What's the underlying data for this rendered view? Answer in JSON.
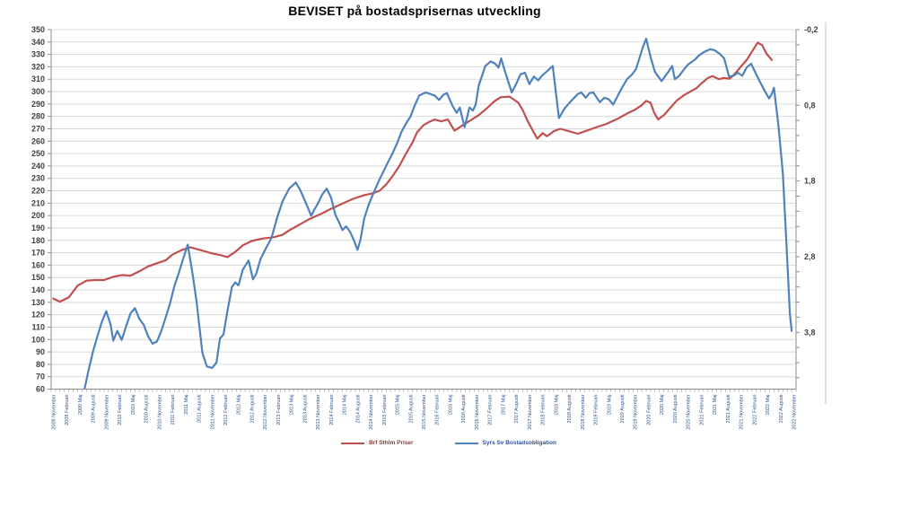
{
  "chart_data": {
    "type": "line",
    "title": "BEVISET på bostadsprisernas utveckling",
    "grid": true,
    "legend_position": "bottom",
    "left_axis": {
      "min": 60,
      "max": 350,
      "tick_step": 10
    },
    "right_axis": {
      "min": -0.2,
      "max": 4.55,
      "direction": "increases-downward",
      "minor_tick_step": 0.2,
      "ticks": [
        {
          "label": "-0,2",
          "value": -0.2
        },
        {
          "label": "0,8",
          "value": 0.8
        },
        {
          "label": "1,8",
          "value": 1.8
        },
        {
          "label": "2,8",
          "value": 2.8
        },
        {
          "label": "3,8",
          "value": 3.8
        }
      ]
    },
    "x_axis": {
      "months_total": 169,
      "label_every_months": 3,
      "labels": [
        "2008 November",
        "2009 Februari",
        "2009 Maj",
        "2009 Augusti",
        "2009 November",
        "2010 Februari",
        "2010 Maj",
        "2010 Augusti",
        "2010 November",
        "2011 Februari",
        "2011 Maj",
        "2011 Augusti",
        "2011 November",
        "2012 Februari",
        "2012 Maj",
        "2012 Augusti",
        "2012 November",
        "2013 Februari",
        "2013 Maj",
        "2013 Augusti",
        "2013 November",
        "2014 Februari",
        "2014 Maj",
        "2014 Augusti",
        "2014 November",
        "2015 Februari",
        "2015 Maj",
        "2015 Augusti",
        "2015 November",
        "2016 Februari",
        "2016 Maj",
        "2016 Augusti",
        "2016 November",
        "2017 Februari",
        "2017 Maj",
        "2017 Augusti",
        "2017 November",
        "2018 Februari",
        "2018 Maj",
        "2018 Augusti",
        "2018 November",
        "2019 Februari",
        "2019 Maj",
        "2019 Augusti",
        "2019 November",
        "2020 Februari",
        "2020 Maj",
        "2020 Augusti",
        "2020 November",
        "2021 Februari",
        "2021 Maj",
        "2021 Augusti",
        "2021 November",
        "2022 Februari",
        "2022 Maj",
        "2022 Augusti",
        "2022 November"
      ]
    },
    "series": [
      {
        "name": "Brf Sthlm Priser",
        "axis": "left",
        "color": "#C0504D",
        "points": [
          [
            0,
            133
          ],
          [
            1.5,
            130.5
          ],
          [
            3.5,
            134
          ],
          [
            5.5,
            143.5
          ],
          [
            7.5,
            147.5
          ],
          [
            9.5,
            148
          ],
          [
            11.5,
            148
          ],
          [
            13.5,
            150.5
          ],
          [
            15.5,
            152
          ],
          [
            17.5,
            151.5
          ],
          [
            19.5,
            155
          ],
          [
            21.5,
            159
          ],
          [
            23.5,
            161.5
          ],
          [
            25.5,
            164
          ],
          [
            27,
            168.5
          ],
          [
            29,
            172
          ],
          [
            31,
            174.5
          ],
          [
            32.5,
            173
          ],
          [
            34,
            171.5
          ],
          [
            36,
            169.5
          ],
          [
            38,
            168
          ],
          [
            39.5,
            166.5
          ],
          [
            41,
            170
          ],
          [
            43,
            176
          ],
          [
            45,
            179.5
          ],
          [
            47.5,
            181.5
          ],
          [
            50,
            182.5
          ],
          [
            52,
            184.5
          ],
          [
            53.5,
            188
          ],
          [
            55.5,
            192
          ],
          [
            58,
            197
          ],
          [
            60.5,
            201
          ],
          [
            63,
            205.5
          ],
          [
            65.5,
            209.5
          ],
          [
            68,
            213.5
          ],
          [
            70.5,
            216.5
          ],
          [
            72.5,
            218
          ],
          [
            74,
            220
          ],
          [
            75.5,
            225
          ],
          [
            77,
            232
          ],
          [
            78.5,
            240
          ],
          [
            80,
            250
          ],
          [
            81.5,
            259
          ],
          [
            82.5,
            267
          ],
          [
            84,
            273
          ],
          [
            85.5,
            276
          ],
          [
            86.5,
            277.5
          ],
          [
            88,
            276
          ],
          [
            89.5,
            277.5
          ],
          [
            91,
            268.5
          ],
          [
            92.5,
            272
          ],
          [
            94.5,
            276.5
          ],
          [
            96.5,
            281
          ],
          [
            98.5,
            287
          ],
          [
            100,
            292
          ],
          [
            101.5,
            295.5
          ],
          [
            103.5,
            296
          ],
          [
            105.5,
            291
          ],
          [
            106.5,
            285
          ],
          [
            107.5,
            277
          ],
          [
            109,
            267
          ],
          [
            109.8,
            262
          ],
          [
            111,
            266.5
          ],
          [
            112,
            264
          ],
          [
            113.5,
            268
          ],
          [
            115,
            270
          ],
          [
            117,
            268
          ],
          [
            119,
            266
          ],
          [
            121,
            268.5
          ],
          [
            123,
            271
          ],
          [
            125.5,
            274
          ],
          [
            128,
            278
          ],
          [
            130,
            282
          ],
          [
            132,
            285.5
          ],
          [
            133.5,
            289
          ],
          [
            134.5,
            292.5
          ],
          [
            135.5,
            291
          ],
          [
            136.3,
            283
          ],
          [
            137.2,
            277.5
          ],
          [
            138.5,
            281
          ],
          [
            140,
            287
          ],
          [
            141.5,
            293
          ],
          [
            143,
            297
          ],
          [
            144.5,
            300
          ],
          [
            146,
            303
          ],
          [
            147,
            306.5
          ],
          [
            148.5,
            311
          ],
          [
            149.5,
            312.5
          ],
          [
            151,
            310
          ],
          [
            152,
            311
          ],
          [
            153.5,
            310.5
          ],
          [
            155,
            316
          ],
          [
            156.2,
            321
          ],
          [
            157.4,
            326
          ],
          [
            158.8,
            334
          ],
          [
            159.8,
            339.5
          ],
          [
            160.8,
            337.5
          ],
          [
            161.8,
            330.5
          ],
          [
            163,
            325.5
          ]
        ]
      },
      {
        "name": "Syrs Sv Bostadsobligation",
        "axis": "right",
        "color": "#4F81BD",
        "points": [
          [
            7,
            4.57
          ],
          [
            8,
            4.3
          ],
          [
            9,
            4.05
          ],
          [
            10,
            3.85
          ],
          [
            11,
            3.66
          ],
          [
            12,
            3.52
          ],
          [
            13,
            3.7
          ],
          [
            13.6,
            3.91
          ],
          [
            14.5,
            3.78
          ],
          [
            15.5,
            3.9
          ],
          [
            16.5,
            3.72
          ],
          [
            17.5,
            3.55
          ],
          [
            18.5,
            3.48
          ],
          [
            19.5,
            3.62
          ],
          [
            20.5,
            3.7
          ],
          [
            21.5,
            3.85
          ],
          [
            22.5,
            3.95
          ],
          [
            23.5,
            3.92
          ],
          [
            24.5,
            3.78
          ],
          [
            25.5,
            3.6
          ],
          [
            26.5,
            3.41
          ],
          [
            27.5,
            3.18
          ],
          [
            28.5,
            3.01
          ],
          [
            29.5,
            2.82
          ],
          [
            30.5,
            2.64
          ],
          [
            31.5,
            3.0
          ],
          [
            32.5,
            3.4
          ],
          [
            33.8,
            4.07
          ],
          [
            34.8,
            4.25
          ],
          [
            36,
            4.27
          ],
          [
            37,
            4.2
          ],
          [
            37.8,
            3.88
          ],
          [
            38.6,
            3.83
          ],
          [
            39.5,
            3.52
          ],
          [
            40.5,
            3.2
          ],
          [
            41.3,
            3.14
          ],
          [
            42,
            3.18
          ],
          [
            43,
            2.97
          ],
          [
            44.3,
            2.85
          ],
          [
            45.3,
            3.1
          ],
          [
            46,
            3.03
          ],
          [
            47,
            2.83
          ],
          [
            48.4,
            2.67
          ],
          [
            49.5,
            2.55
          ],
          [
            50.8,
            2.28
          ],
          [
            52,
            2.07
          ],
          [
            53.5,
            1.9
          ],
          [
            55,
            1.82
          ],
          [
            56,
            1.92
          ],
          [
            57.5,
            2.12
          ],
          [
            58.5,
            2.26
          ],
          [
            59.3,
            2.17
          ],
          [
            60,
            2.1
          ],
          [
            61,
            1.98
          ],
          [
            62,
            1.9
          ],
          [
            63,
            2.02
          ],
          [
            64,
            2.25
          ],
          [
            64.7,
            2.33
          ],
          [
            65.6,
            2.45
          ],
          [
            66.4,
            2.4
          ],
          [
            67.3,
            2.47
          ],
          [
            68.3,
            2.6
          ],
          [
            69,
            2.71
          ],
          [
            69.7,
            2.57
          ],
          [
            70.5,
            2.3
          ],
          [
            71.5,
            2.12
          ],
          [
            72.7,
            1.95
          ],
          [
            74,
            1.78
          ],
          [
            75.5,
            1.6
          ],
          [
            77,
            1.43
          ],
          [
            78,
            1.3
          ],
          [
            79,
            1.15
          ],
          [
            80,
            1.04
          ],
          [
            81,
            0.95
          ],
          [
            82,
            0.8
          ],
          [
            83,
            0.67
          ],
          [
            84.5,
            0.63
          ],
          [
            85.5,
            0.65
          ],
          [
            86.5,
            0.67
          ],
          [
            87.5,
            0.73
          ],
          [
            88.5,
            0.66
          ],
          [
            89.3,
            0.64
          ],
          [
            90.5,
            0.8
          ],
          [
            91.5,
            0.9
          ],
          [
            92.2,
            0.83
          ],
          [
            93.3,
            1.09
          ],
          [
            94.4,
            0.83
          ],
          [
            95.2,
            0.87
          ],
          [
            95.8,
            0.79
          ],
          [
            96.5,
            0.54
          ],
          [
            98,
            0.28
          ],
          [
            99.2,
            0.22
          ],
          [
            100.2,
            0.25
          ],
          [
            101,
            0.3
          ],
          [
            101.6,
            0.18
          ],
          [
            102.4,
            0.34
          ],
          [
            104,
            0.63
          ],
          [
            105,
            0.52
          ],
          [
            106,
            0.39
          ],
          [
            107,
            0.37
          ],
          [
            108,
            0.52
          ],
          [
            109,
            0.42
          ],
          [
            110,
            0.47
          ],
          [
            111,
            0.4
          ],
          [
            112,
            0.35
          ],
          [
            113.3,
            0.28
          ],
          [
            114.7,
            0.97
          ],
          [
            116,
            0.84
          ],
          [
            117.5,
            0.74
          ],
          [
            119,
            0.65
          ],
          [
            119.8,
            0.63
          ],
          [
            120.8,
            0.7
          ],
          [
            121.6,
            0.64
          ],
          [
            122.5,
            0.63
          ],
          [
            124,
            0.76
          ],
          [
            125,
            0.7
          ],
          [
            126,
            0.72
          ],
          [
            127,
            0.79
          ],
          [
            129,
            0.57
          ],
          [
            130.2,
            0.45
          ],
          [
            131.2,
            0.4
          ],
          [
            132.2,
            0.32
          ],
          [
            133.7,
            0.04
          ],
          [
            134.5,
            -0.08
          ],
          [
            135.5,
            0.16
          ],
          [
            136.5,
            0.36
          ],
          [
            138,
            0.48
          ],
          [
            139.5,
            0.36
          ],
          [
            140.4,
            0.28
          ],
          [
            141,
            0.455
          ],
          [
            142,
            0.41
          ],
          [
            143,
            0.33
          ],
          [
            144,
            0.26
          ],
          [
            145.5,
            0.2
          ],
          [
            146.5,
            0.14
          ],
          [
            147.5,
            0.1
          ],
          [
            149,
            0.06
          ],
          [
            150,
            0.07
          ],
          [
            151.2,
            0.12
          ],
          [
            152.2,
            0.18
          ],
          [
            153.3,
            0.42
          ],
          [
            154.3,
            0.41
          ],
          [
            155.3,
            0.37
          ],
          [
            156.3,
            0.41
          ],
          [
            157.3,
            0.3
          ],
          [
            158.3,
            0.25
          ],
          [
            159.3,
            0.37
          ],
          [
            160.4,
            0.5
          ],
          [
            161.4,
            0.61
          ],
          [
            162.4,
            0.71
          ],
          [
            163,
            0.65
          ],
          [
            163.5,
            0.57
          ],
          [
            164.5,
            1.07
          ],
          [
            165.5,
            1.7
          ],
          [
            166.3,
            2.6
          ],
          [
            167.1,
            3.55
          ],
          [
            167.5,
            3.78
          ]
        ]
      }
    ],
    "colors": {
      "gridline": "#D9D9D9",
      "axis_line": "#8C8C8C",
      "frame_line": "#BFBFBF",
      "left_tick_label": "#3F3F3F",
      "right_tick_label": "#3F3F3F",
      "x_tick_label": "#31538F",
      "legend_label_red": "#963634",
      "legend_label_blue": "#31538F"
    }
  }
}
